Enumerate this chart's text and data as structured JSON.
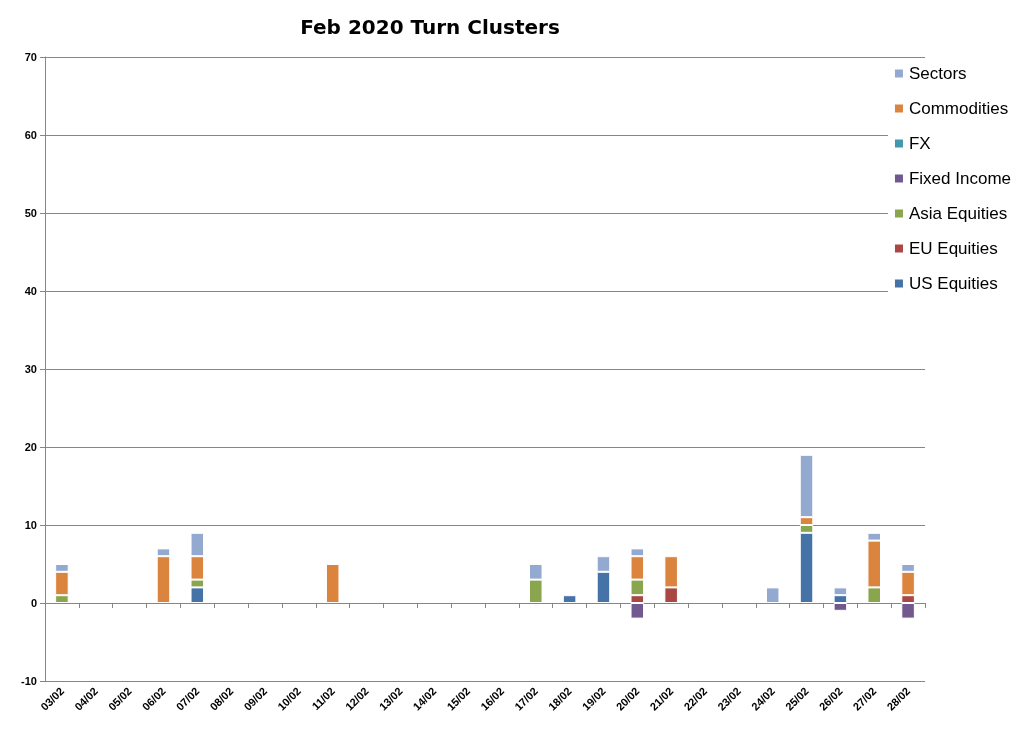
{
  "chart_data": {
    "type": "bar",
    "title": "Feb 2020 Turn Clusters",
    "stacked": true,
    "grid": "y",
    "legend": "right",
    "categories": [
      "03/02",
      "04/02",
      "05/02",
      "06/02",
      "07/02",
      "08/02",
      "09/02",
      "10/02",
      "11/02",
      "12/02",
      "13/02",
      "14/02",
      "15/02",
      "16/02",
      "17/02",
      "18/02",
      "19/02",
      "20/02",
      "21/02",
      "22/02",
      "23/02",
      "24/02",
      "25/02",
      "26/02",
      "27/02",
      "28/02"
    ],
    "ylim": [
      -10,
      70
    ],
    "yticks": [
      -10,
      0,
      10,
      20,
      30,
      40,
      50,
      60,
      70
    ],
    "series": [
      {
        "name": "US Equities",
        "color": "#4572a7",
        "values": [
          null,
          null,
          null,
          null,
          2,
          null,
          null,
          null,
          null,
          null,
          null,
          null,
          null,
          null,
          null,
          1,
          4,
          null,
          null,
          null,
          null,
          null,
          9,
          1,
          null,
          null
        ]
      },
      {
        "name": "EU Equities",
        "color": "#aa4643",
        "values": [
          null,
          null,
          null,
          null,
          null,
          null,
          null,
          null,
          null,
          null,
          null,
          null,
          null,
          null,
          null,
          null,
          null,
          1,
          2,
          null,
          null,
          null,
          null,
          null,
          null,
          1
        ]
      },
      {
        "name": "Asia Equities",
        "color": "#89a54e",
        "values": [
          1,
          null,
          null,
          null,
          1,
          null,
          null,
          null,
          null,
          null,
          null,
          null,
          null,
          null,
          3,
          null,
          null,
          2,
          null,
          null,
          null,
          null,
          1,
          null,
          2,
          null
        ]
      },
      {
        "name": "Fixed Income",
        "color": "#71588f",
        "values": [
          null,
          null,
          null,
          null,
          null,
          null,
          null,
          null,
          null,
          null,
          null,
          null,
          null,
          null,
          null,
          null,
          null,
          -2,
          null,
          null,
          null,
          null,
          null,
          -1,
          null,
          -2
        ]
      },
      {
        "name": "FX",
        "color": "#4198af",
        "values": [
          null,
          null,
          null,
          null,
          null,
          null,
          null,
          null,
          null,
          null,
          null,
          null,
          null,
          null,
          null,
          null,
          null,
          null,
          null,
          null,
          null,
          null,
          null,
          null,
          null,
          null
        ]
      },
      {
        "name": "Commodities",
        "color": "#db843d",
        "values": [
          3,
          null,
          null,
          6,
          3,
          null,
          null,
          null,
          5,
          null,
          null,
          null,
          null,
          null,
          null,
          null,
          null,
          3,
          4,
          null,
          null,
          null,
          1,
          null,
          6,
          3
        ]
      },
      {
        "name": "Sectors",
        "color": "#93a9cf",
        "values": [
          1,
          null,
          null,
          1,
          3,
          null,
          null,
          null,
          null,
          null,
          null,
          null,
          null,
          null,
          2,
          null,
          2,
          1,
          null,
          null,
          null,
          2,
          8,
          1,
          1,
          1
        ]
      }
    ]
  }
}
